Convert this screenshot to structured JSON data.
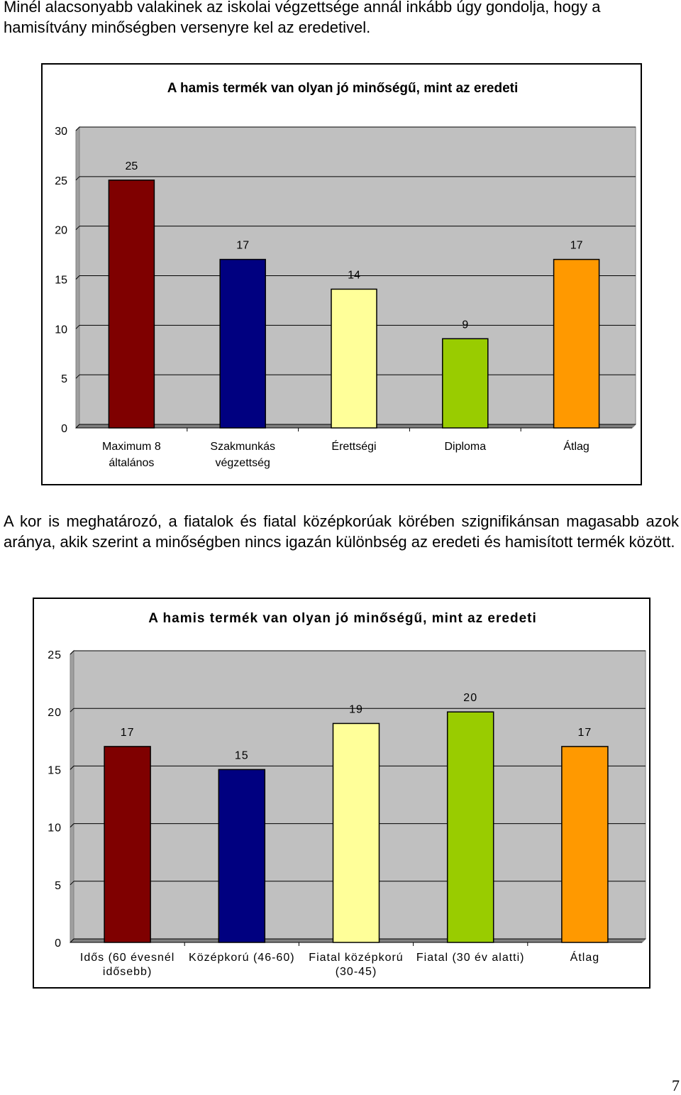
{
  "intro_text": "Minél alacsonyabb valakinek az iskolai végzettsége annál inkább úgy gondolja, hogy a hamisítvány minőségben versenyre kel az eredetivel.",
  "middle_text": "A kor is meghatározó, a fiatalok és fiatal középkorúak körében szignifikánsan magasabb azok aránya, akik szerint a minőségben nincs igazán különbség az eredeti és hamisított termék között.",
  "page_number": "7",
  "chart_data": [
    {
      "type": "bar",
      "title": "A hamis termék van olyan jó minőségű, mint az eredeti",
      "categories": [
        [
          "Maximum 8",
          "általános"
        ],
        [
          "Szakmunkás",
          "végzettség"
        ],
        [
          "Érettségi"
        ],
        [
          "Diploma"
        ],
        [
          "Átlag"
        ]
      ],
      "values": [
        25,
        17,
        14,
        9,
        17
      ],
      "colors": [
        "#7f0000",
        "#000080",
        "#ffff99",
        "#99cc00",
        "#ff9900"
      ],
      "ylim": [
        0,
        30
      ],
      "yticks": [
        0,
        5,
        10,
        15,
        20,
        25,
        30
      ],
      "grid": true,
      "plot_background": "#c0c0c0",
      "xlabel": "",
      "ylabel": ""
    },
    {
      "type": "bar",
      "title": "A hamis termék van olyan jó minőségű, mint az eredeti",
      "categories": [
        [
          "Idős (60 évesnél",
          "idősebb)"
        ],
        [
          "Középkorú (46-60)"
        ],
        [
          "Fiatal középkorú",
          "(30-45)"
        ],
        [
          "Fiatal (30 év alatti)"
        ],
        [
          "Átlag"
        ]
      ],
      "values": [
        17,
        15,
        19,
        20,
        17
      ],
      "colors": [
        "#7f0000",
        "#000080",
        "#ffff99",
        "#99cc00",
        "#ff9900"
      ],
      "ylim": [
        0,
        25
      ],
      "yticks": [
        0,
        5,
        10,
        15,
        20,
        25
      ],
      "grid": true,
      "plot_background": "#c0c0c0",
      "xlabel": "",
      "ylabel": ""
    }
  ]
}
